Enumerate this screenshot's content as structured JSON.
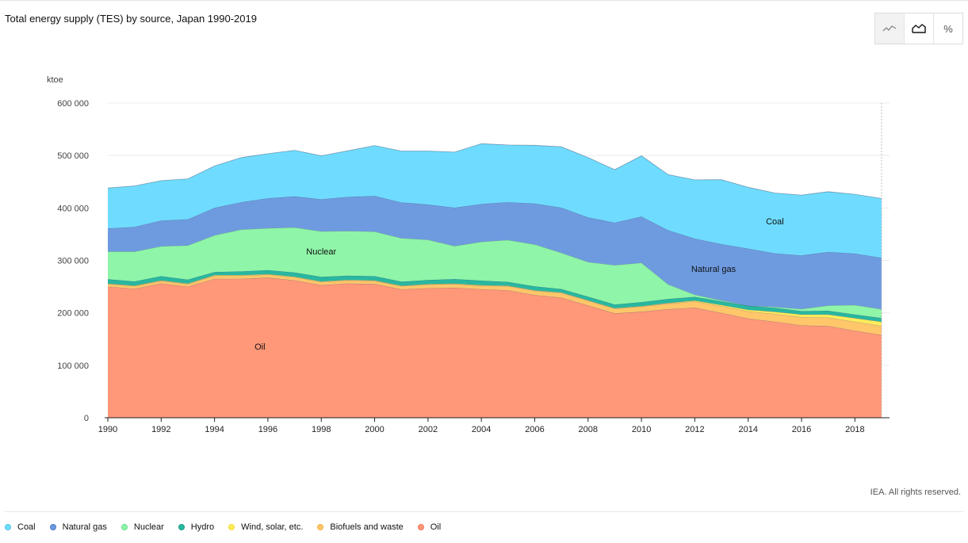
{
  "title": "Total energy supply (TES) by source, Japan 1990-2019",
  "toggles": {
    "percent_label": "%"
  },
  "credit": "IEA. All rights reserved.",
  "colors": {
    "Coal": "#6fdcff",
    "Natural gas": "#6e9be0",
    "Nuclear": "#8ff5a8",
    "Hydro": "#28b7a1",
    "Wind, solar, etc.": "#ffeb5c",
    "Biofuels and waste": "#ffc66a",
    "Oil": "#ff9779"
  },
  "legend_colors": {
    "Coal": "#4fc3ea",
    "Natural gas": "#4a78c9",
    "Nuclear": "#63e08c",
    "Hydro": "#1a9e8a",
    "Wind, solar, etc.": "#f4dc32",
    "Biofuels and waste": "#f7ae45",
    "Oil": "#f5765a"
  },
  "chart_data": {
    "type": "area",
    "stacked": true,
    "title": "Total energy supply (TES) by source, Japan 1990-2019",
    "ylabel": "ktoe",
    "xlabel": "",
    "ylim": [
      0,
      600000
    ],
    "yticks": [
      0,
      100000,
      200000,
      300000,
      400000,
      500000,
      600000
    ],
    "ytick_labels": [
      "0",
      "100 000",
      "200 000",
      "300 000",
      "400 000",
      "500 000",
      "600 000"
    ],
    "xticks": [
      1990,
      1992,
      1994,
      1996,
      1998,
      2000,
      2002,
      2004,
      2006,
      2008,
      2010,
      2012,
      2014,
      2016,
      2018
    ],
    "grid": true,
    "legend_position": "bottom-left",
    "x": [
      1990,
      1991,
      1992,
      1993,
      1994,
      1995,
      1996,
      1997,
      1998,
      1999,
      2000,
      2001,
      2002,
      2003,
      2004,
      2005,
      2006,
      2007,
      2008,
      2009,
      2010,
      2011,
      2012,
      2013,
      2014,
      2015,
      2016,
      2017,
      2018,
      2019
    ],
    "series": [
      {
        "name": "Oil",
        "values": [
          250000,
          246000,
          256000,
          250000,
          265000,
          265000,
          267000,
          262000,
          253000,
          256000,
          255000,
          245000,
          247000,
          248000,
          245000,
          243000,
          234000,
          229000,
          214000,
          199000,
          202000,
          207000,
          210000,
          200000,
          189000,
          183000,
          176000,
          175000,
          166000,
          158000
        ]
      },
      {
        "name": "Biofuels and waste",
        "values": [
          5000,
          5000,
          5000,
          5000,
          6000,
          6000,
          6000,
          6000,
          6000,
          6000,
          6000,
          6000,
          7000,
          7000,
          7000,
          8000,
          8000,
          9000,
          9000,
          9000,
          10000,
          11000,
          12000,
          13000,
          14000,
          15000,
          16000,
          16000,
          17000,
          17000
        ]
      },
      {
        "name": "Wind, solar, etc.",
        "values": [
          1000,
          1000,
          1000,
          1000,
          1000,
          1000,
          1000,
          1000,
          1000,
          1000,
          1000,
          1000,
          1000,
          1000,
          1000,
          1000,
          1000,
          1000,
          1000,
          1000,
          1000,
          1000,
          1500,
          2000,
          3000,
          4000,
          5000,
          6000,
          7000,
          8000
        ]
      },
      {
        "name": "Hydro",
        "values": [
          8000,
          8000,
          8000,
          7500,
          6000,
          7000,
          7500,
          8000,
          8500,
          8000,
          8000,
          7500,
          7500,
          8500,
          8500,
          7000,
          7500,
          6500,
          7000,
          7000,
          7500,
          7500,
          7000,
          7000,
          7500,
          7500,
          6500,
          7000,
          7000,
          7000
        ]
      },
      {
        "name": "Nuclear",
        "values": [
          53000,
          57000,
          57000,
          65000,
          70000,
          80000,
          80000,
          86000,
          87000,
          85000,
          85000,
          83000,
          77000,
          63000,
          74000,
          80000,
          80000,
          69000,
          66000,
          75000,
          75000,
          28000,
          4000,
          2000,
          0,
          2000,
          4000,
          10000,
          18000,
          17000
        ]
      },
      {
        "name": "Natural gas",
        "values": [
          44000,
          47000,
          49000,
          50000,
          52000,
          52000,
          57000,
          59000,
          61000,
          65000,
          68000,
          68000,
          67000,
          73000,
          72000,
          72000,
          78000,
          86000,
          85000,
          81000,
          88000,
          103000,
          107000,
          107000,
          109000,
          102000,
          102000,
          102000,
          98000,
          98000
        ]
      },
      {
        "name": "Coal",
        "values": [
          77000,
          78000,
          76000,
          77000,
          80000,
          85000,
          85000,
          88000,
          83000,
          88000,
          96000,
          98000,
          102000,
          106000,
          115000,
          109000,
          111000,
          116000,
          114000,
          101000,
          116000,
          106000,
          112000,
          123000,
          117000,
          115000,
          115000,
          115000,
          113000,
          113000
        ]
      }
    ],
    "annotations": [
      {
        "text": "Oil",
        "x": 1995.7,
        "y": 130000
      },
      {
        "text": "Nuclear",
        "x": 1998.0,
        "y": 311000
      },
      {
        "text": "Natural gas",
        "x": 2012.7,
        "y": 278000
      },
      {
        "text": "Coal",
        "x": 2015.0,
        "y": 369000
      }
    ]
  },
  "legend": [
    "Coal",
    "Natural gas",
    "Nuclear",
    "Hydro",
    "Wind, solar, etc.",
    "Biofuels and waste",
    "Oil"
  ]
}
